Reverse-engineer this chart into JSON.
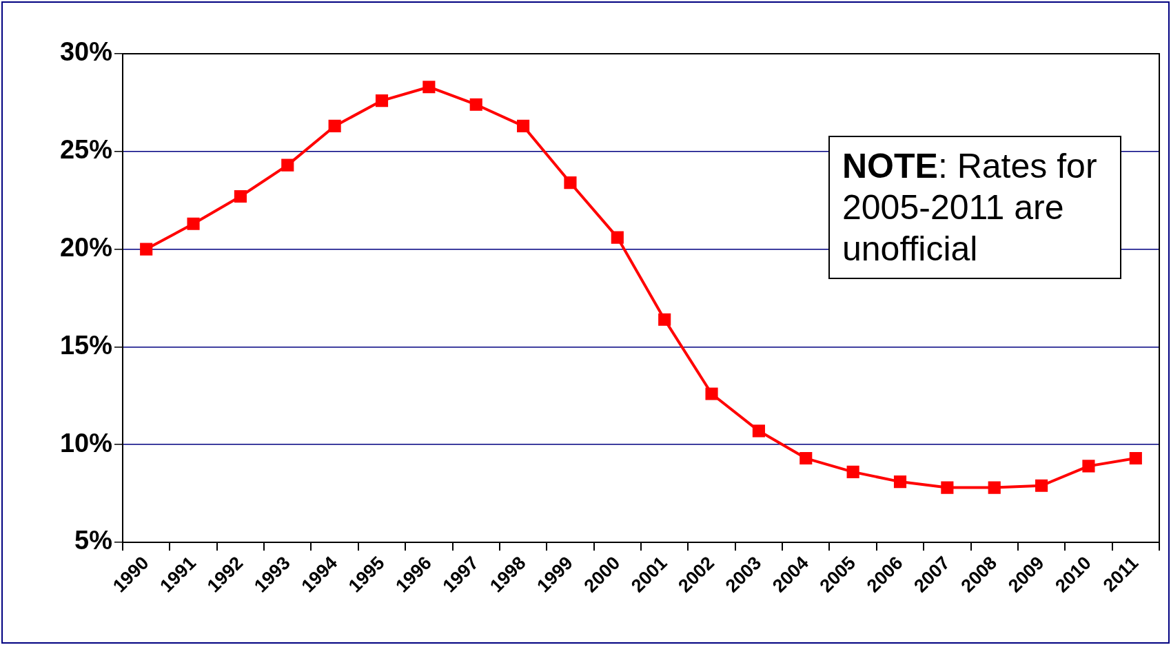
{
  "chart_data": {
    "type": "line",
    "categories": [
      "1990",
      "1991",
      "1992",
      "1993",
      "1994",
      "1995",
      "1996",
      "1997",
      "1998",
      "1999",
      "2000",
      "2001",
      "2002",
      "2003",
      "2004",
      "2005",
      "2006",
      "2007",
      "2008",
      "2009",
      "2010",
      "2011"
    ],
    "series": [
      {
        "color": "#ff0000",
        "values": [
          20.0,
          21.3,
          22.7,
          24.3,
          26.3,
          27.6,
          28.3,
          27.4,
          26.3,
          23.4,
          20.6,
          16.4,
          12.6,
          10.7,
          9.3,
          8.6,
          8.1,
          7.8,
          7.8,
          7.9,
          8.9,
          9.3
        ]
      }
    ],
    "ylim": [
      5,
      30
    ],
    "yticks": [
      {
        "value": 5,
        "label": "5%"
      },
      {
        "value": 10,
        "label": "10%"
      },
      {
        "value": 15,
        "label": "15%"
      },
      {
        "value": 20,
        "label": "20%"
      },
      {
        "value": 25,
        "label": "25%"
      },
      {
        "value": 30,
        "label": "30%"
      }
    ],
    "grid": "y",
    "legend": false,
    "marker": "square",
    "line_style": "solid",
    "annotations": [
      "NOTE: Rates for 2005-2011 are unofficial"
    ]
  }
}
